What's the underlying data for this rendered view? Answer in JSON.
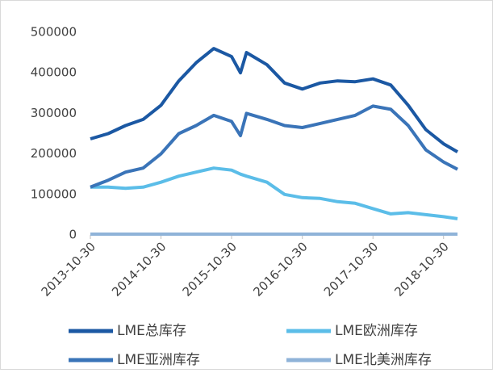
{
  "chart_data": {
    "type": "line",
    "x": [
      "2013-10-30",
      "2014-01-30",
      "2014-04-30",
      "2014-07-30",
      "2014-10-30",
      "2015-01-30",
      "2015-04-30",
      "2015-07-30",
      "2015-10-30",
      "2015-12-15",
      "2016-01-15",
      "2016-04-30",
      "2016-07-30",
      "2016-10-30",
      "2017-01-30",
      "2017-04-30",
      "2017-07-30",
      "2017-10-30",
      "2018-01-30",
      "2018-04-30",
      "2018-07-30",
      "2018-10-30",
      "2019-01-10"
    ],
    "series": [
      {
        "name": "LME总库存",
        "color": "#1b58a3",
        "values": [
          237000,
          250000,
          270000,
          285000,
          320000,
          380000,
          425000,
          460000,
          440000,
          400000,
          450000,
          420000,
          375000,
          360000,
          375000,
          380000,
          378000,
          385000,
          370000,
          320000,
          260000,
          225000,
          205000
        ]
      },
      {
        "name": "LME欧洲库存",
        "color": "#5bbde8",
        "values": [
          118000,
          118000,
          115000,
          118000,
          130000,
          145000,
          155000,
          165000,
          160000,
          150000,
          145000,
          130000,
          100000,
          92000,
          90000,
          82000,
          78000,
          65000,
          52000,
          55000,
          50000,
          45000,
          40000
        ]
      },
      {
        "name": "LME亚洲库存",
        "color": "#3a74b8",
        "values": [
          118000,
          135000,
          155000,
          165000,
          200000,
          250000,
          270000,
          295000,
          280000,
          245000,
          300000,
          285000,
          270000,
          265000,
          275000,
          285000,
          295000,
          318000,
          310000,
          270000,
          210000,
          180000,
          162000
        ]
      },
      {
        "name": "LME北美洲库存",
        "color": "#8fb3d8",
        "values": [
          2000,
          2000,
          2000,
          2000,
          2000,
          2000,
          2000,
          2000,
          2000,
          2000,
          2000,
          2000,
          2000,
          2000,
          2000,
          2000,
          2000,
          2000,
          2000,
          2000,
          2000,
          2000,
          2000
        ]
      }
    ],
    "xlim": [
      "2013-10-30",
      "2019-01-10"
    ],
    "xticks": [
      "2013-10-30",
      "2014-10-30",
      "2015-10-30",
      "2016-10-30",
      "2017-10-30",
      "2018-10-30"
    ],
    "ylim": [
      0,
      500000
    ],
    "yticks": [
      0,
      100000,
      200000,
      300000,
      400000,
      500000
    ]
  }
}
